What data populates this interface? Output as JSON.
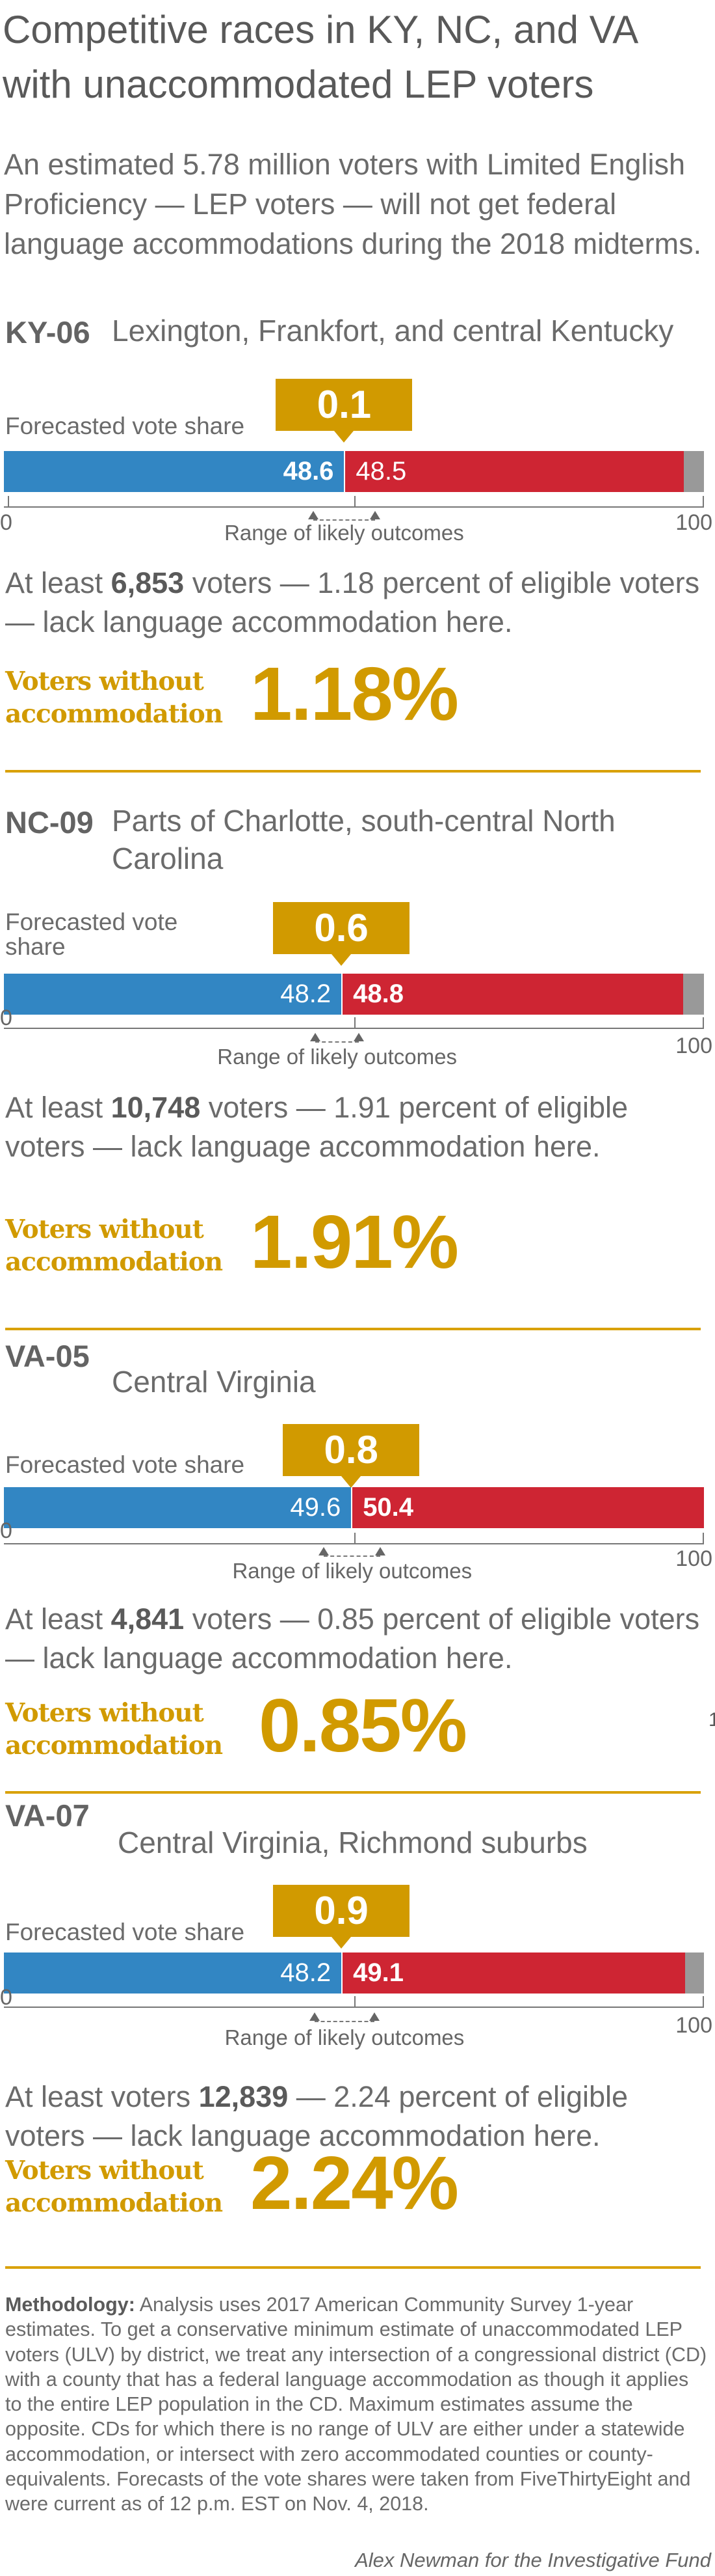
{
  "title": "Competitive races in KY, NC, and VA with unaccommodated LEP voters",
  "intro": "An estimated 5.78 million voters with Limited English Proficiency — LEP voters — will not get federal language accommodations during the 2018 midterms.",
  "labels": {
    "forecast": "Forecasted vote share",
    "range": "Range of likely outcomes",
    "axis_min": "0",
    "axis_max": "100",
    "voters_without": "Voters without accommodation",
    "stray": "1"
  },
  "colors": {
    "dem": "#3286C3",
    "rep": "#CE2533",
    "other": "#999999",
    "accent": "#D19A00"
  },
  "chart_data": [
    {
      "type": "bar",
      "district": "KY-06",
      "description": "Lexington, Frankfort, and central Kentucky",
      "margin": "0.1",
      "dem": 48.6,
      "rep": 48.5,
      "dem_label": "48.6",
      "rep_label": "48.5",
      "winner": "dem",
      "range": [
        44.2,
        53.0
      ],
      "xlim": [
        0,
        100
      ],
      "body_pre": "At least ",
      "count": "6,853",
      "body_post": " voters — 1.18 percent of eligible voters — lack language accommodation here.",
      "percent": "1.18%"
    },
    {
      "type": "bar",
      "district": "NC-09",
      "description": "Parts of Charlotte, south-central North Carolina",
      "margin": "0.6",
      "dem": 48.2,
      "rep": 48.8,
      "dem_label": "48.2",
      "rep_label": "48.8",
      "winner": "rep",
      "range": [
        44.5,
        50.7
      ],
      "xlim": [
        0,
        100
      ],
      "body_pre": "At least ",
      "count": "10,748",
      "body_post": " voters — 1.91 percent of eligible voters — lack language accommodation here.",
      "percent": "1.91%"
    },
    {
      "type": "bar",
      "district": "VA-05",
      "description": "Central Virginia",
      "margin": "0.8",
      "dem": 49.6,
      "rep": 50.4,
      "dem_label": "49.6",
      "rep_label": "50.4",
      "winner": "rep",
      "range": [
        45.7,
        53.8
      ],
      "xlim": [
        0,
        100
      ],
      "body_pre": "At least ",
      "count": "4,841",
      "body_post": " voters — 0.85 percent of eligible voters — lack language accommodation here.",
      "percent": "0.85%"
    },
    {
      "type": "bar",
      "district": "VA-07",
      "description": "Central Virginia, Richmond suburbs",
      "margin": "0.9",
      "dem": 48.2,
      "rep": 49.1,
      "dem_label": "48.2",
      "rep_label": "49.1",
      "winner": "rep",
      "range": [
        44.4,
        52.9
      ],
      "xlim": [
        0,
        100
      ],
      "body_pre": "At least voters ",
      "count": "12,839",
      "body_post": "  — 2.24 percent of eligible voters — lack language accommodation here.",
      "percent": "2.24%"
    }
  ],
  "methodology": {
    "label": "Methodology:",
    "text": " Analysis uses 2017 American Community Survey 1-year estimates. To get a conservative minimum estimate of unaccommodated LEP voters (ULV) by district, we treat any intersection of a congressional district (CD) with a county that has a federal language accommodation as though it applies to the entire LEP population in the CD. Maximum estimates assume the opposite. CDs for which there is no range of ULV are either under a statewide accommodation, or intersect with zero accommodated counties or county-equivalents. Forecasts of the vote shares were taken from FiveThirtyEight and were current as of 12 p.m. EST on Nov. 4, 2018."
  },
  "credit": "Alex Newman for the Investigative Fund"
}
